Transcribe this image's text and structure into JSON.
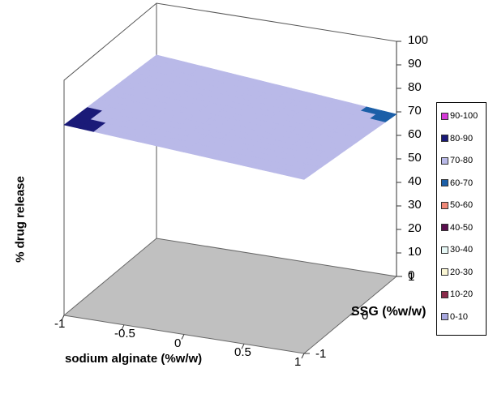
{
  "chart_data": {
    "type": "surface3d",
    "xlabel": "sodium alginate (%w/w)",
    "ylabel": "SSG (%w/w)",
    "zlabel": "% drug release",
    "x_ticks": [
      "-1",
      "-0.5",
      "0",
      "0.5",
      "1"
    ],
    "y_ticks": [
      "-1",
      "0",
      "1"
    ],
    "z_ticks": [
      "0",
      "10",
      "20",
      "30",
      "40",
      "50",
      "60",
      "70",
      "80",
      "90",
      "100"
    ],
    "xlim": [
      -1,
      1
    ],
    "ylim": [
      -1,
      1
    ],
    "zlim": [
      0,
      100
    ],
    "surface": [
      {
        "x": -1,
        "y": -1,
        "z": 81
      },
      {
        "x": 1,
        "y": -1,
        "z": 74
      },
      {
        "x": -1,
        "y": 1,
        "z": 78
      },
      {
        "x": 1,
        "y": 1,
        "z": 69
      }
    ],
    "legend": [
      {
        "label": "90-100",
        "color": "#d63ad8"
      },
      {
        "label": "80-90",
        "color": "#1a1a78"
      },
      {
        "label": "70-80",
        "color": "#b9b9e8"
      },
      {
        "label": "60-70",
        "color": "#1c5fa8"
      },
      {
        "label": "50-60",
        "color": "#f08878"
      },
      {
        "label": "40-50",
        "color": "#5a0f4e"
      },
      {
        "label": "30-40",
        "color": "#e6f8f6"
      },
      {
        "label": "20-30",
        "color": "#fbf7d4"
      },
      {
        "label": "10-20",
        "color": "#8a2a4a"
      },
      {
        "label": "0-10",
        "color": "#a9a9e0"
      }
    ],
    "floor_color": "#c0c0c0",
    "legend_position": "right"
  }
}
